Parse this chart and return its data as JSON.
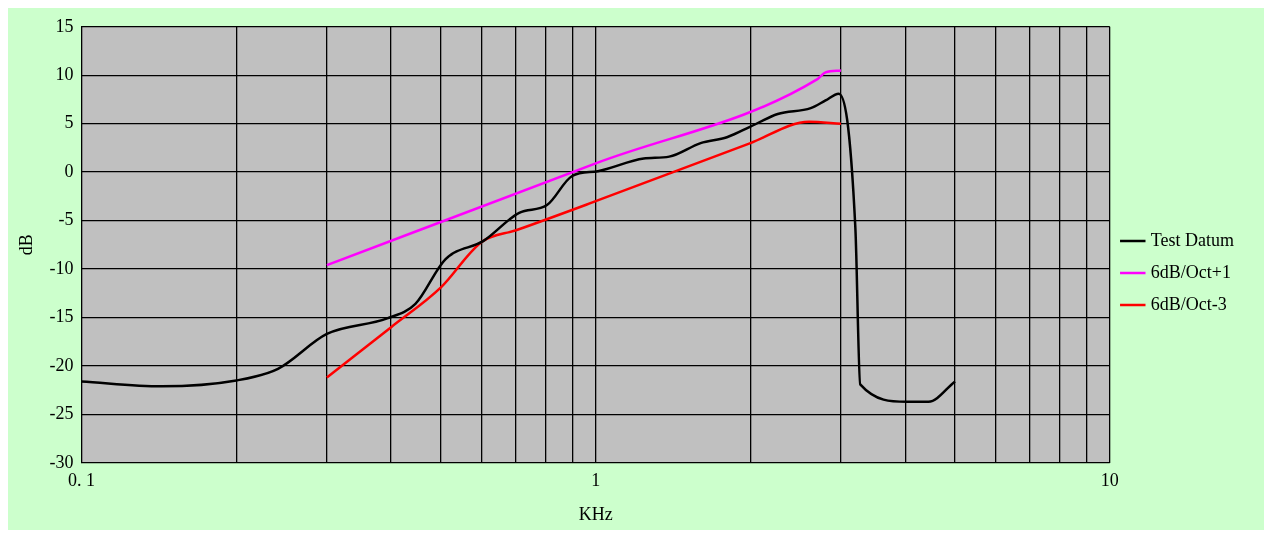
{
  "chart_data": {
    "type": "line",
    "xlabel": "KHz",
    "ylabel": "dB",
    "log": "x",
    "grid": true,
    "legend": "right",
    "marker": "none",
    "line_style": "solid",
    "xlim": [
      0.1,
      10
    ],
    "ylim": [
      -30,
      15
    ],
    "xticks": [
      {
        "value": 0.1,
        "label": "0. 1"
      },
      {
        "value": 0.2,
        "label": null
      },
      {
        "value": 0.3,
        "label": null
      },
      {
        "value": 0.4,
        "label": null
      },
      {
        "value": 0.5,
        "label": null
      },
      {
        "value": 0.6,
        "label": null
      },
      {
        "value": 0.7,
        "label": null
      },
      {
        "value": 0.8,
        "label": null
      },
      {
        "value": 0.9,
        "label": null
      },
      1,
      {
        "value": 2,
        "label": null
      },
      {
        "value": 3,
        "label": null
      },
      {
        "value": 4,
        "label": null
      },
      {
        "value": 5,
        "label": null
      },
      {
        "value": 6,
        "label": null
      },
      {
        "value": 7,
        "label": null
      },
      {
        "value": 8,
        "label": null
      },
      {
        "value": 9,
        "label": null
      },
      10
    ],
    "yticks": [
      -30,
      -25,
      -20,
      -15,
      -10,
      -5,
      0,
      5,
      10,
      15
    ],
    "series": [
      {
        "name": "Test Datum",
        "color": "#000000",
        "x": [
          0.1,
          0.143,
          0.2,
          0.241,
          0.3,
          0.393,
          0.446,
          0.51,
          0.605,
          0.71,
          0.804,
          0.9,
          1.01,
          1.24,
          1.39,
          1.6,
          1.8,
          2.0,
          2.26,
          2.62,
          2.8,
          2.97,
          3.2,
          3.27,
          4.03,
          4.44,
          5.0
        ],
        "values": [
          -21.6,
          -22.1,
          -21.5,
          -20.3,
          -16.7,
          -15.1,
          -13.6,
          -9.0,
          -7.1,
          -4.2,
          -3.4,
          -0.4,
          0.1,
          1.4,
          1.6,
          3.0,
          3.6,
          4.7,
          6.0,
          6.6,
          7.4,
          8.1,
          -5.8,
          -21.9,
          -23.7,
          -23.7,
          -21.6
        ]
      },
      {
        "name": "6dB/Oct+1",
        "color": "#ff00ff",
        "x": [
          0.3,
          1,
          2.7,
          2.8,
          3.0
        ],
        "values": [
          -9.6,
          0.9,
          9.6,
          10.3,
          10.5
        ]
      },
      {
        "name": "6dB/Oct-3",
        "color": "#ff0000",
        "x": [
          0.3,
          0.4,
          0.5,
          0.6,
          0.7,
          1,
          2,
          2.6,
          3.0
        ],
        "values": [
          -21.2,
          -16.0,
          -11.9,
          -7.2,
          -6.0,
          -3.0,
          3.0,
          5.2,
          5.0
        ]
      }
    ]
  }
}
